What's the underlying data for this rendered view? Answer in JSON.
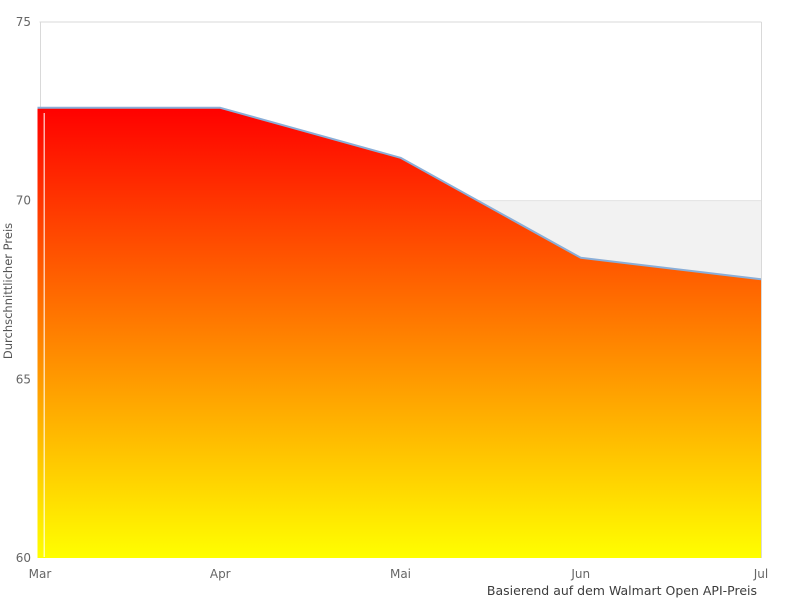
{
  "chart_data": {
    "type": "area",
    "title": "",
    "ylabel": "Durchschnittlicher Preis",
    "xlabel": "",
    "caption": "Basierend auf dem Walmart Open API-Preis",
    "categories": [
      "Mar",
      "Apr",
      "Mai",
      "Jun",
      "Jul"
    ],
    "series": [
      {
        "name": "Durchschnittlicher Preis",
        "values": [
          72.6,
          72.6,
          71.2,
          68.4,
          67.8
        ]
      }
    ],
    "values": [
      72.6,
      72.6,
      71.2,
      68.4,
      67.8
    ],
    "ylim": [
      60,
      75
    ],
    "yticks": [
      75,
      70,
      65,
      60
    ],
    "grid": "single horizontal gridline at 70, drawn behind area",
    "legend_position": "none",
    "reference_band": {
      "from": 70,
      "to": 60,
      "color": "#f2f2f2",
      "edge_color": "#e2e2e2"
    },
    "colors": {
      "area_gradient_top": "#ff0000",
      "area_gradient_bottom": "#ffff00",
      "line_stroke": "#8aaed8",
      "plot_border": "#d9d9d9",
      "band_fill": "#f2f2f2",
      "gridline": "#e2e2e2",
      "tick_text": "#666666",
      "axis_title_text": "#555555",
      "caption_text": "#3c3c3c",
      "background": "#ffffff"
    }
  }
}
